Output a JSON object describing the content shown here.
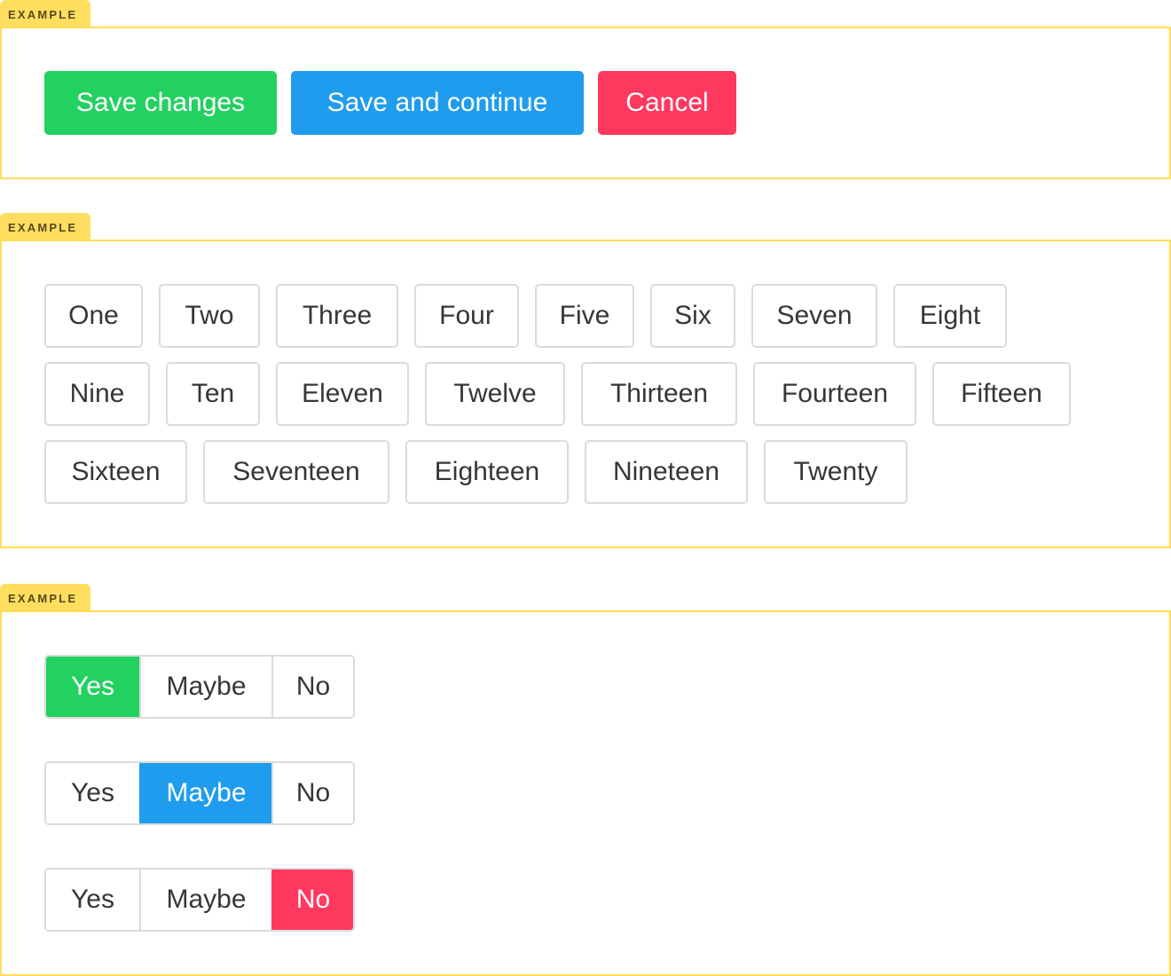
{
  "example_label": "EXAMPLE",
  "colors": {
    "success": "#23d160",
    "info": "#209cee",
    "danger": "#ff3860",
    "tab": "#ffdd57",
    "border": "#dbdbdb",
    "text": "#363636"
  },
  "section1": {
    "buttons": [
      "Save changes",
      "Save and continue",
      "Cancel"
    ]
  },
  "section2": {
    "tags": [
      "One",
      "Two",
      "Three",
      "Four",
      "Five",
      "Six",
      "Seven",
      "Eight",
      "Nine",
      "Ten",
      "Eleven",
      "Twelve",
      "Thirteen",
      "Fourteen",
      "Fifteen",
      "Sixteen",
      "Seventeen",
      "Eighteen",
      "Nineteen",
      "Twenty"
    ]
  },
  "section3": {
    "options": [
      "Yes",
      "Maybe",
      "No"
    ],
    "groups": [
      {
        "selected": "Yes",
        "color": "#23d160"
      },
      {
        "selected": "Maybe",
        "color": "#209cee"
      },
      {
        "selected": "No",
        "color": "#ff3860"
      }
    ]
  }
}
